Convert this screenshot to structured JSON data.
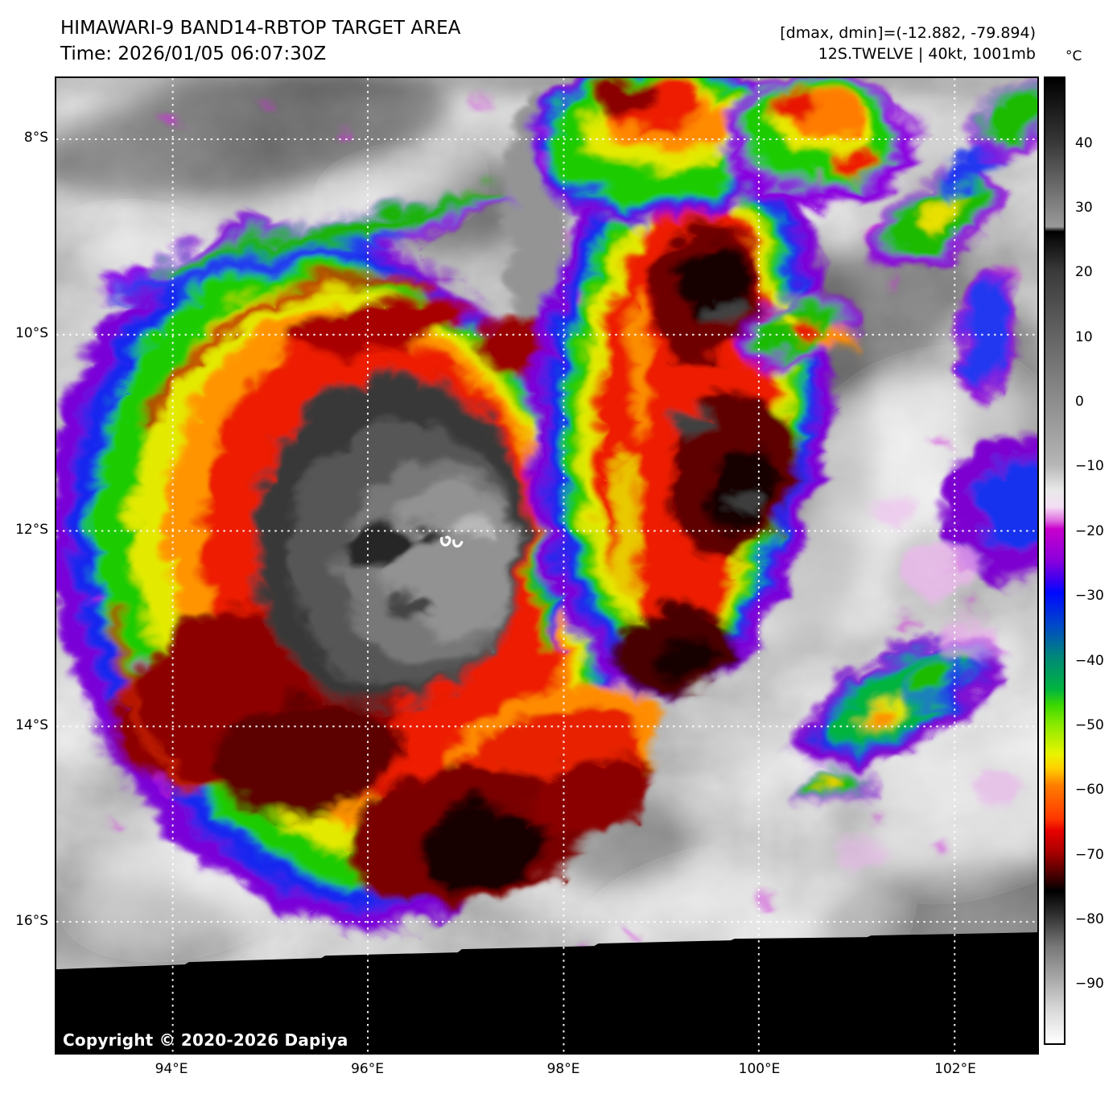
{
  "header": {
    "title": "HIMAWARI-9 BAND14-RBTOP TARGET AREA",
    "time": "Time: 2026/01/05 06:07:30Z",
    "dmax_dmin": "[dmax, dmin]=(-12.882, -79.894)",
    "storm_info": "12S.TWELVE | 40kt, 1001mb"
  },
  "colorbar": {
    "unit": "°C",
    "ticks": [
      "40",
      "30",
      "20",
      "10",
      "0",
      "−10",
      "−20",
      "−30",
      "−40",
      "−50",
      "−60",
      "−70",
      "−80",
      "−90"
    ]
  },
  "axes": {
    "lat_ticks": [
      "8°S",
      "10°S",
      "12°S",
      "14°S",
      "16°S"
    ],
    "lon_ticks": [
      "94°E",
      "96°E",
      "98°E",
      "100°E",
      "102°E"
    ]
  },
  "map": {
    "copyright": "Copyright © 2020-2026 Dapiya",
    "center_marker": "tropical-cyclone-center",
    "satellite": "Himawari-9",
    "band": "BAND14-RBTOP"
  },
  "colors": {
    "coldest_convection": "#e60000",
    "cold_convection": "#80e800",
    "warm_cloud": "#8c8c8c",
    "fringe": "#c800cd",
    "no_data": "#000000"
  }
}
